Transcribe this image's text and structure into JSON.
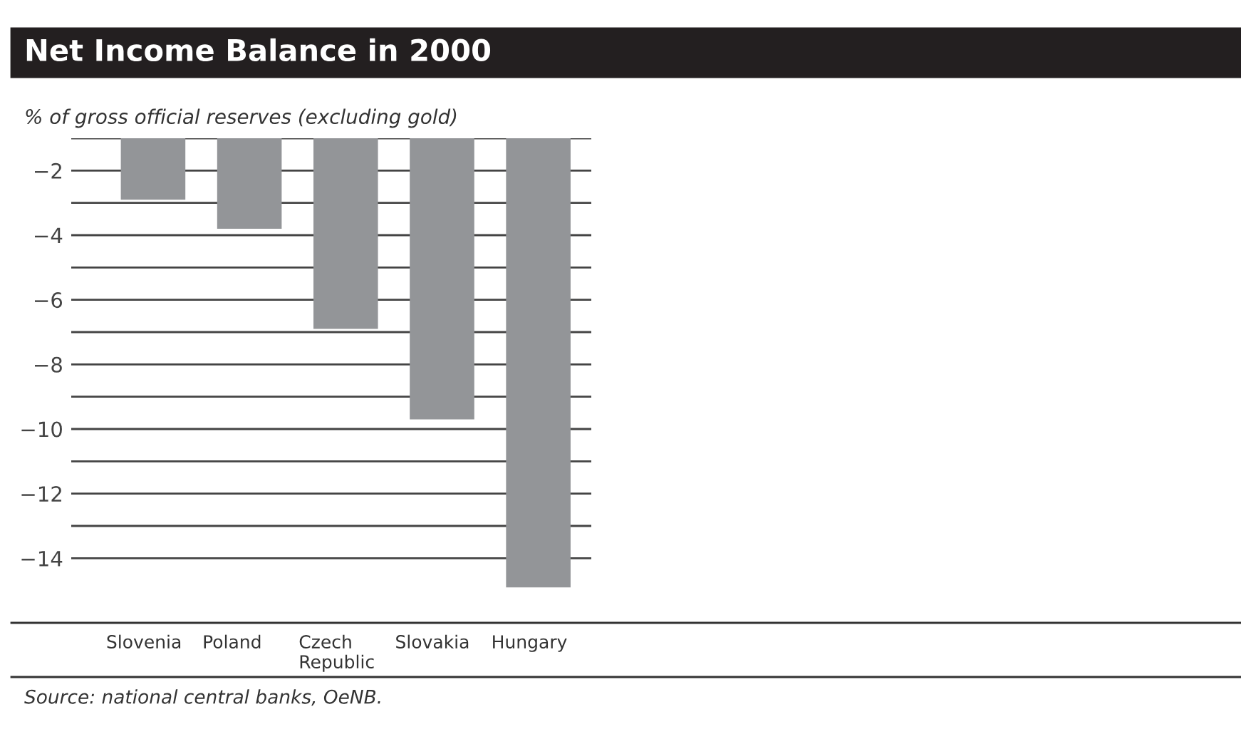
{
  "chart_data": {
    "type": "bar",
    "title": "Net Income Balance in 2000",
    "ylabel": "% of gross official reserves (excluding gold)",
    "categories": [
      "Slovenia",
      "Poland",
      "Czech\nRepublic",
      "Slovakia",
      "Hungary"
    ],
    "values": [
      -2.9,
      -3.8,
      -6.9,
      -9.7,
      -14.9
    ],
    "color": "#939598",
    "ylim": [
      -16,
      -1
    ],
    "yticks": [
      {
        "value": -1,
        "label": null
      },
      -2,
      {
        "value": -3,
        "label": null
      },
      -4,
      {
        "value": -5,
        "label": null
      },
      -6,
      {
        "value": -7,
        "label": null
      },
      -8,
      {
        "value": -9,
        "label": null
      },
      -10,
      {
        "value": -11,
        "label": null
      },
      -12,
      {
        "value": -13,
        "label": null
      },
      -14
    ],
    "grid": "y",
    "annotations": [
      "Source: national central banks, OeNB."
    ]
  }
}
